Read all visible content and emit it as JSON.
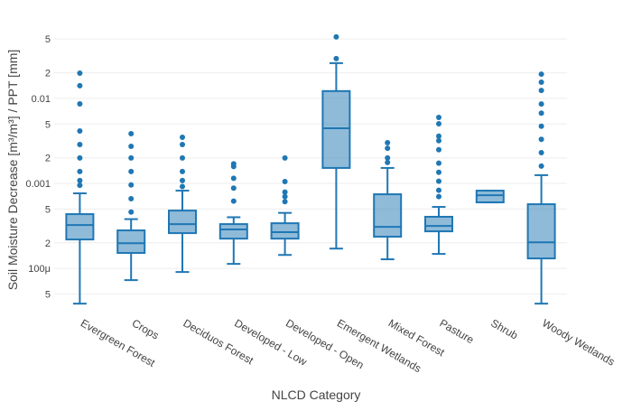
{
  "chart_data": {
    "type": "box",
    "y_label": "Soil Moisture Decrease [m³/m³] / PPT [mm]",
    "x_label": "NLCD Category",
    "color": "#1f77b4",
    "log_y": true,
    "grid": true,
    "categories": [
      "Evergreen Forest",
      "Crops",
      "Deciduos Forest",
      "Developed - Low",
      "Developed - Open",
      "Emergent Wetlands",
      "Mixed Forest",
      "Pasture",
      "Shrub",
      "Woody Wetlands"
    ],
    "boxes": [
      {
        "lower": 3.85e-05,
        "q1": 0.000219,
        "median": 0.000324,
        "q3": 0.000435,
        "upper": 0.000764,
        "outliers": [
          0.0198,
          0.0141,
          0.00863,
          0.00414,
          0.00287,
          0.00199,
          0.00138,
          0.00108,
          0.00095
        ]
      },
      {
        "lower": 7.28e-05,
        "q1": 0.000152,
        "median": 0.000198,
        "q3": 0.00028,
        "upper": 0.00038,
        "outliers": [
          0.00384,
          0.00273,
          0.00199,
          0.00138,
          0.00096,
          0.00066,
          0.00046
        ]
      },
      {
        "lower": 9.07e-05,
        "q1": 0.00026,
        "median": 0.000332,
        "q3": 0.000479,
        "upper": 0.000822,
        "outliers": [
          0.00349,
          0.00287,
          0.00199,
          0.00138,
          0.00108,
          0.00092
        ]
      },
      {
        "lower": 0.000113,
        "q1": 0.000224,
        "median": 0.000287,
        "q3": 0.000332,
        "upper": 0.0004,
        "outliers": [
          0.0017,
          0.00158,
          0.00115,
          0.00088,
          0.00062
        ]
      },
      {
        "lower": 0.000144,
        "q1": 0.000224,
        "median": 0.000267,
        "q3": 0.00034,
        "upper": 0.00045,
        "outliers": [
          0.00199,
          0.00105,
          0.00079,
          0.0007,
          0.00061
        ]
      },
      {
        "lower": 0.000171,
        "q1": 0.00152,
        "median": 0.00445,
        "q3": 0.0122,
        "upper": 0.026,
        "outliers": [
          0.0529,
          0.0294
        ]
      },
      {
        "lower": 0.000128,
        "q1": 0.000236,
        "median": 0.000308,
        "q3": 0.000745,
        "upper": 0.00152,
        "outliers": [
          0.00301,
          0.00259,
          0.00199,
          0.00176
        ]
      },
      {
        "lower": 0.000148,
        "q1": 0.000273,
        "median": 0.000316,
        "q3": 0.000405,
        "upper": 0.000529,
        "outliers": [
          0.00597,
          0.00503,
          0.0036,
          0.00318,
          0.00249,
          0.00173,
          0.00135,
          0.00106,
          0.00083,
          0.0007
        ]
      },
      {
        "lower": 0.000598,
        "q1": 0.000598,
        "median": 0.000727,
        "q3": 0.000822,
        "upper": 0.000822,
        "outliers": []
      },
      {
        "lower": 3.85e-05,
        "q1": 0.000131,
        "median": 0.000203,
        "q3": 0.000569,
        "upper": 0.00125,
        "outliers": [
          0.0193,
          0.0155,
          0.0124,
          0.0086,
          0.0067,
          0.0047,
          0.0033,
          0.0023,
          0.0016
        ]
      }
    ],
    "ylim": [
      3.1e-05,
      0.069
    ],
    "yticks": [
      {
        "value": 0.05,
        "label": "5"
      },
      {
        "value": 0.02,
        "label": "2"
      },
      0.01,
      {
        "value": 0.005,
        "label": "5"
      },
      {
        "value": 0.002,
        "label": "2"
      },
      0.001,
      {
        "value": 0.0005,
        "label": "5"
      },
      {
        "value": 0.0002,
        "label": "2"
      },
      {
        "value": 0.0001,
        "label": "100μ"
      },
      {
        "value": 5e-05,
        "label": "5"
      }
    ]
  }
}
